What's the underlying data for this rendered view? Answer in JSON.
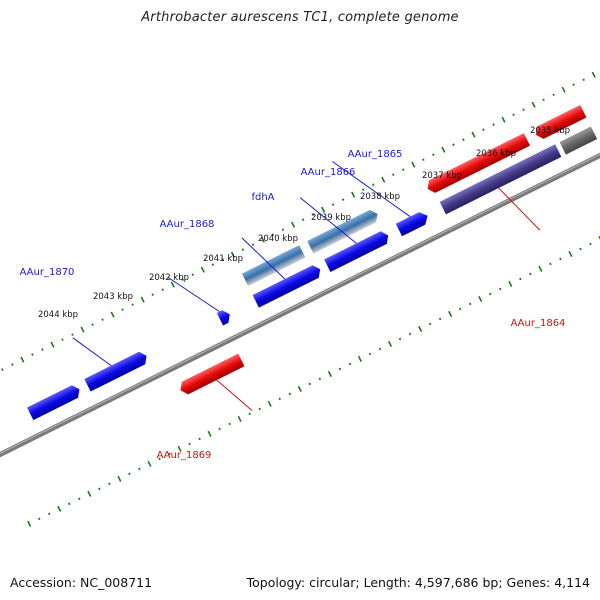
{
  "title": "Arthrobacter aurescens TC1, complete genome",
  "footer": {
    "accession": "Accession: NC_008711",
    "summary": "Topology: circular; Length: 4,597,686 bp; Genes: 4,114"
  },
  "scale_labels": [
    "2035 kbp",
    "2036 kbp",
    "2037 kbp",
    "2038 kbp",
    "2039 kbp",
    "2040 kbp",
    "2041 kbp",
    "2042 kbp",
    "2043 kbp",
    "2044 kbp"
  ],
  "genes": [
    {
      "name": "AAur_1865",
      "strand": "forward"
    },
    {
      "name": "AAur_1866",
      "strand": "forward"
    },
    {
      "name": "fdhA",
      "strand": "forward"
    },
    {
      "name": "AAur_1868",
      "strand": "forward"
    },
    {
      "name": "AAur_1870",
      "strand": "forward"
    },
    {
      "name": "AAur_1864",
      "strand": "reverse"
    },
    {
      "name": "AAur_1869",
      "strand": "reverse"
    }
  ],
  "colors": {
    "forward_gene": "#1010e0",
    "reverse_gene": "#e01010",
    "other_feature": "#4a78b0",
    "reverse_feature": "#4a3c8c",
    "backbone": "#808080",
    "scale_ticks": "#1a7a1a",
    "forward_label": "#1a1ad0",
    "reverse_label": "#d01010"
  }
}
